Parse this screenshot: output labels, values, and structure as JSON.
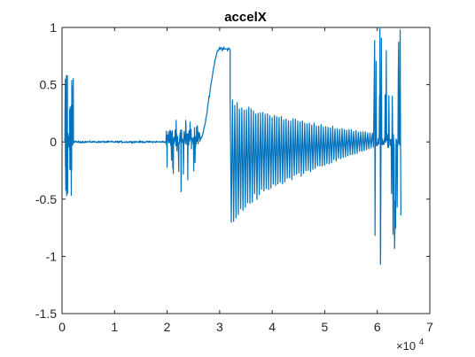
{
  "chart_data": {
    "type": "line",
    "title": "accelX",
    "xlabel": "",
    "ylabel": "",
    "xlim": [
      0,
      7
    ],
    "ylim": [
      -1.5,
      1
    ],
    "x_ticks": [
      0,
      1,
      2,
      3,
      4,
      5,
      6,
      7
    ],
    "x_tick_labels": [
      "0",
      "1",
      "2",
      "3",
      "4",
      "5",
      "6",
      "7"
    ],
    "y_ticks": [
      1,
      0.5,
      0,
      -0.5,
      -1,
      -1.5
    ],
    "y_tick_labels": [
      "1",
      "0.5",
      "0",
      "-0.5",
      "-1",
      "-1.5"
    ],
    "x_multiplier_base": "×10",
    "x_multiplier_exp": "4",
    "grid": false,
    "line_color": "#0072bd",
    "series": [
      {
        "x_start": 0.05,
        "x_end": 6.45,
        "segments": [
          {
            "x": [
              0.05,
              0.22
            ],
            "kind": "burst",
            "peak": 0.58,
            "trough": -0.47
          },
          {
            "x": [
              0.22,
              1.98
            ],
            "kind": "flat",
            "level": 0.0,
            "noise": 0.01
          },
          {
            "x": [
              1.98,
              2.62
            ],
            "kind": "noisy",
            "peak": 0.21,
            "trough": -0.44
          },
          {
            "x": [
              2.62,
              3.0
            ],
            "kind": "ramp",
            "from": 0.02,
            "to": 0.82
          },
          {
            "x": [
              3.0,
              3.2
            ],
            "kind": "plateau",
            "level": 0.81
          },
          {
            "x": [
              3.2,
              5.95
            ],
            "kind": "decaying_oscillation",
            "start_peak": 0.4,
            "start_trough": -0.77,
            "end_peak": 0.08,
            "end_trough": -0.05
          },
          {
            "x": [
              5.95,
              6.45
            ],
            "kind": "burst",
            "peak": 1.0,
            "trough": -1.07
          }
        ]
      }
    ]
  }
}
